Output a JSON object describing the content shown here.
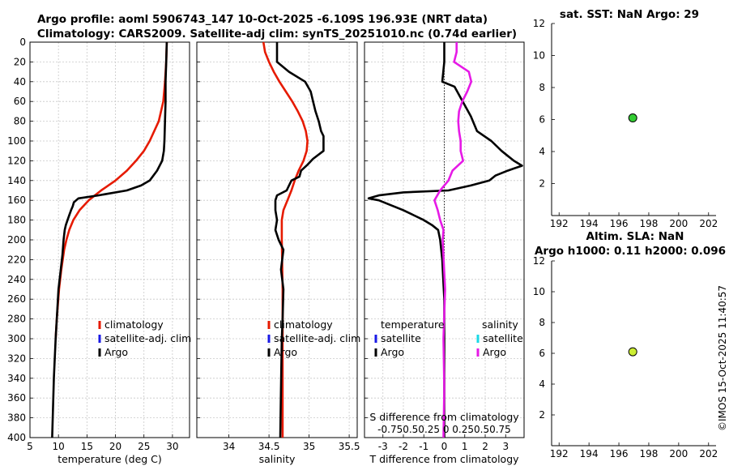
{
  "header": {
    "title_line1": "Argo profile: aoml 5906743_147 10-Oct-2025 -6.109S 196.93E (NRT data)",
    "title_line2": "Climatology: CARS2009. Satellite-adj clim: synTS_20251010.nc (0.74d earlier)"
  },
  "watermark": "©IMOS 15-Oct-2025 11:40:57",
  "colors": {
    "climatology": "#e61a00",
    "satellite_adj_clim": "#1a1ae6",
    "argo": "#000000",
    "salinity_argo": "#e61ae6",
    "salinity_satellite": "#1ad9e6",
    "sst_marker": "#33cc33",
    "sla_marker": "#ccee33"
  },
  "chart_data": [
    {
      "id": "temperature",
      "type": "line",
      "xlabel": "temperature (deg C)",
      "ylabel": "",
      "xlim": [
        5,
        33
      ],
      "ylim": [
        400,
        0
      ],
      "xticks": [
        5,
        10,
        15,
        20,
        25,
        30
      ],
      "yticks": [
        0,
        20,
        40,
        60,
        80,
        100,
        120,
        140,
        160,
        180,
        200,
        220,
        240,
        260,
        280,
        300,
        320,
        340,
        360,
        380,
        400
      ],
      "legend": [
        "climatology",
        "satellite-adj. clim",
        "Argo"
      ],
      "series": [
        {
          "name": "climatology",
          "color": "#e61a00",
          "depth": [
            0,
            20,
            40,
            60,
            80,
            100,
            110,
            120,
            130,
            140,
            150,
            160,
            170,
            180,
            190,
            200,
            210,
            230,
            250,
            280,
            300
          ],
          "values": [
            29.0,
            28.9,
            28.7,
            28.4,
            27.6,
            26.0,
            25.0,
            23.6,
            22.0,
            20.0,
            17.5,
            15.3,
            13.7,
            12.6,
            11.9,
            11.4,
            11.0,
            10.5,
            10.1,
            9.7,
            9.5
          ]
        },
        {
          "name": "Argo",
          "color": "#000000",
          "depth": [
            0,
            20,
            40,
            60,
            80,
            100,
            110,
            120,
            130,
            140,
            145,
            150,
            155,
            158,
            162,
            166,
            170,
            175,
            180,
            185,
            190,
            200,
            215,
            230,
            250,
            270,
            300,
            340,
            380,
            400
          ],
          "values": [
            29.0,
            28.9,
            28.8,
            28.8,
            28.7,
            28.6,
            28.5,
            28.2,
            27.3,
            26.0,
            24.5,
            22.0,
            17.0,
            13.5,
            12.7,
            12.5,
            12.2,
            11.9,
            11.6,
            11.3,
            11.1,
            10.9,
            10.7,
            10.4,
            10.0,
            9.8,
            9.5,
            9.2,
            9.0,
            8.9
          ]
        }
      ]
    },
    {
      "id": "salinity",
      "type": "line",
      "xlabel": "salinity",
      "ylabel": "",
      "xlim": [
        33.6,
        35.6
      ],
      "ylim": [
        400,
        0
      ],
      "xticks": [
        34,
        34.5,
        35,
        35.5
      ],
      "legend": [
        "climatology",
        "satellite-adj. clim",
        "Argo"
      ],
      "series": [
        {
          "name": "climatology",
          "color": "#e61a00",
          "depth": [
            0,
            10,
            20,
            30,
            40,
            50,
            60,
            70,
            80,
            90,
            100,
            110,
            120,
            130,
            140,
            150,
            160,
            170,
            180,
            200,
            250,
            300,
            350,
            400
          ],
          "values": [
            34.43,
            34.45,
            34.5,
            34.56,
            34.63,
            34.71,
            34.79,
            34.86,
            34.92,
            34.96,
            34.98,
            34.97,
            34.93,
            34.87,
            34.82,
            34.78,
            34.73,
            34.68,
            34.66,
            34.66,
            34.67,
            34.67,
            34.67,
            34.67
          ]
        },
        {
          "name": "Argo",
          "color": "#000000",
          "depth": [
            0,
            20,
            30,
            40,
            50,
            60,
            70,
            80,
            90,
            95,
            110,
            118,
            124,
            130,
            136,
            140,
            145,
            150,
            155,
            160,
            170,
            180,
            190,
            200,
            210,
            230,
            250,
            280,
            300,
            350,
            400
          ],
          "values": [
            34.6,
            34.6,
            34.75,
            34.95,
            35.02,
            35.05,
            35.08,
            35.12,
            35.15,
            35.18,
            35.18,
            35.05,
            34.98,
            34.9,
            34.88,
            34.78,
            34.75,
            34.72,
            34.6,
            34.58,
            34.58,
            34.6,
            34.58,
            34.62,
            34.68,
            34.65,
            34.68,
            34.67,
            34.66,
            34.65,
            34.64
          ]
        }
      ]
    },
    {
      "id": "difference",
      "type": "line",
      "xlabel": "T difference from climatology",
      "top_label": "S difference from climatology",
      "top_ticks": [
        -0.75,
        -0.5,
        -0.25,
        0,
        0.25,
        0.5,
        0.75
      ],
      "top_ticks_printed": "-0.750.50.25 0 0.250.50.75",
      "xlim": [
        -3.9,
        3.9
      ],
      "ylim": [
        400,
        0
      ],
      "xticks": [
        -3,
        -2,
        -1,
        0,
        1,
        2,
        3
      ],
      "legend_temperature": {
        "title": "temperature",
        "items": [
          "satellite",
          "Argo"
        ]
      },
      "legend_salinity": {
        "title": "salinity",
        "items": [
          "satellite",
          "Argo"
        ]
      },
      "series": [
        {
          "name": "T diff Argo",
          "color": "#000000",
          "depth": [
            0,
            20,
            40,
            45,
            60,
            75,
            90,
            100,
            110,
            115,
            120,
            125,
            130,
            135,
            140,
            145,
            150,
            152,
            155,
            158,
            160,
            165,
            170,
            175,
            180,
            185,
            190,
            200,
            220,
            240,
            260,
            300,
            400
          ],
          "values": [
            0.0,
            0.0,
            -0.1,
            0.5,
            0.9,
            1.3,
            1.6,
            2.3,
            2.8,
            3.1,
            3.4,
            3.8,
            3.1,
            2.5,
            2.2,
            1.3,
            0.2,
            -2.0,
            -3.2,
            -3.7,
            -3.2,
            -2.6,
            -2.0,
            -1.5,
            -1.0,
            -0.6,
            -0.3,
            -0.2,
            -0.1,
            -0.05,
            0.0,
            0.0,
            0.0
          ]
        },
        {
          "name": "S diff Argo",
          "color": "#e61ae6",
          "depth": [
            0,
            10,
            20,
            30,
            40,
            50,
            60,
            70,
            80,
            90,
            100,
            110,
            120,
            130,
            140,
            150,
            160,
            170,
            180,
            190,
            200,
            250,
            300,
            350,
            400
          ],
          "values": [
            0.15,
            0.15,
            0.12,
            0.3,
            0.33,
            0.28,
            0.22,
            0.18,
            0.17,
            0.18,
            0.2,
            0.2,
            0.23,
            0.1,
            0.05,
            -0.05,
            -0.12,
            -0.08,
            -0.05,
            -0.01,
            -0.02,
            0.01,
            -0.01,
            0.0,
            -0.01
          ]
        }
      ]
    },
    {
      "id": "sst",
      "type": "scatter",
      "title": "sat. SST: NaN Argo: 29",
      "xlim": [
        191.5,
        202.5
      ],
      "ylim": [
        0,
        12
      ],
      "xticks": [
        192,
        194,
        196,
        198,
        200,
        202
      ],
      "yticks": [
        2,
        4,
        6,
        8,
        10,
        12
      ],
      "points": [
        {
          "x": 196.93,
          "y": 6.1
        }
      ]
    },
    {
      "id": "sla",
      "type": "scatter",
      "title_line1": "Altim. SLA: NaN",
      "title_line2": "Argo h1000: 0.11 h2000: 0.096",
      "xlim": [
        191.5,
        202.5
      ],
      "ylim": [
        0,
        12
      ],
      "xticks": [
        192,
        194,
        196,
        198,
        200,
        202
      ],
      "yticks": [
        2,
        4,
        6,
        8,
        10,
        12
      ],
      "points": [
        {
          "x": 196.93,
          "y": 6.1
        }
      ]
    }
  ]
}
